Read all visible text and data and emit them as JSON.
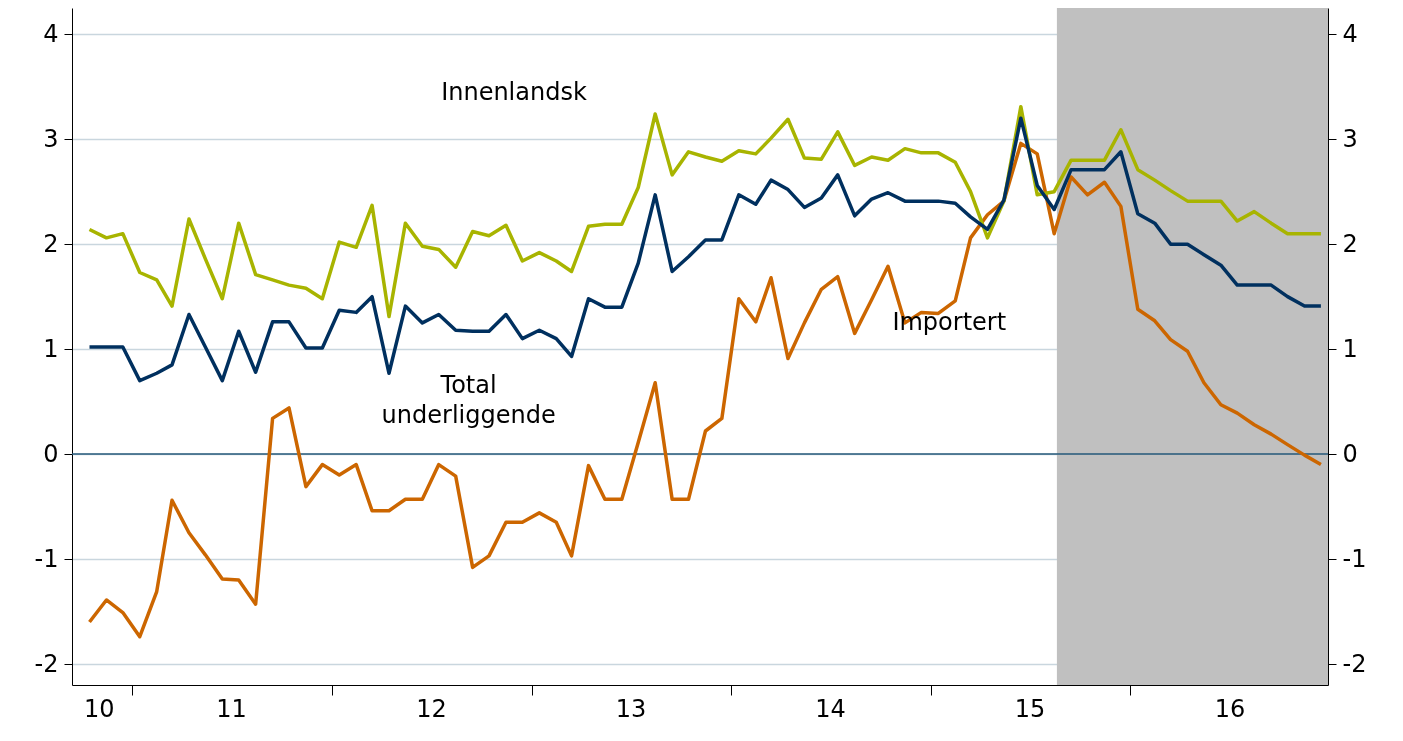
{
  "chart_data": {
    "type": "line",
    "x": [
      "2010-10-15",
      "2010-11-15",
      "2010-12-15",
      "2011-01-15",
      "2011-02-15",
      "2011-03-15",
      "2011-04-15",
      "2011-05-15",
      "2011-06-15",
      "2011-07-15",
      "2011-08-15",
      "2011-09-15",
      "2011-10-15",
      "2011-11-15",
      "2011-12-15",
      "2012-01-15",
      "2012-02-15",
      "2012-03-15",
      "2012-04-15",
      "2012-05-15",
      "2012-06-15",
      "2012-07-15",
      "2012-08-15",
      "2012-09-15",
      "2012-10-15",
      "2012-11-15",
      "2012-12-15",
      "2013-01-15",
      "2013-02-15",
      "2013-03-15",
      "2013-04-15",
      "2013-05-15",
      "2013-06-15",
      "2013-07-15",
      "2013-08-15",
      "2013-09-15",
      "2013-10-15",
      "2013-11-15",
      "2013-12-15",
      "2014-01-15",
      "2014-02-15",
      "2014-03-15",
      "2014-04-15",
      "2014-05-15",
      "2014-06-15",
      "2014-07-15",
      "2014-08-15",
      "2014-09-15",
      "2014-10-15",
      "2014-11-15",
      "2014-12-15",
      "2015-01-15",
      "2015-02-15",
      "2015-03-15",
      "2015-04-15",
      "2015-05-15",
      "2015-06-15",
      "2015-07-15",
      "2015-08-15",
      "2015-09-15",
      "2015-10-15",
      "2015-11-15",
      "2015-12-15",
      "2016-01-15",
      "2016-02-15",
      "2016-03-15",
      "2016-04-15",
      "2016-05-15",
      "2016-06-15",
      "2016-07-15",
      "2016-08-15",
      "2016-09-15",
      "2016-10-15",
      "2016-11-15",
      "2016-12-15"
    ],
    "series": [
      {
        "name": "Importert",
        "color": "#cc6600",
        "values": [
          -1.6,
          -1.39,
          -1.51,
          -1.74,
          -1.31,
          -0.44,
          -0.75,
          -0.96,
          -1.19,
          -1.2,
          -1.43,
          0.34,
          0.44,
          -0.31,
          -0.1,
          -0.2,
          -0.1,
          -0.54,
          -0.54,
          -0.43,
          -0.43,
          -0.1,
          -0.21,
          -1.08,
          -0.97,
          -0.65,
          -0.65,
          -0.56,
          -0.65,
          -0.97,
          -0.11,
          -0.43,
          -0.43,
          0.11,
          0.68,
          -0.43,
          -0.43,
          0.22,
          0.34,
          1.48,
          1.26,
          1.68,
          0.91,
          1.25,
          1.57,
          1.69,
          1.15,
          1.47,
          1.79,
          1.25,
          1.35,
          1.34,
          1.46,
          2.06,
          2.28,
          2.41,
          2.96,
          2.86,
          2.1,
          2.64,
          2.47,
          2.59,
          2.36,
          1.38,
          1.27,
          1.09,
          0.98,
          0.68,
          0.47,
          0.39,
          0.28,
          0.19,
          0.09,
          -0.01,
          -0.1
        ]
      },
      {
        "name": "Innenlandsk",
        "color": "#a8b400",
        "values": [
          2.14,
          2.06,
          2.1,
          1.73,
          1.66,
          1.41,
          2.24,
          1.86,
          1.48,
          2.2,
          1.71,
          1.66,
          1.61,
          1.58,
          1.48,
          2.02,
          1.97,
          2.37,
          1.31,
          2.2,
          1.98,
          1.95,
          1.78,
          2.12,
          2.08,
          2.18,
          1.84,
          1.92,
          1.84,
          1.74,
          2.17,
          2.19,
          2.19,
          2.54,
          3.24,
          2.66,
          2.88,
          2.83,
          2.79,
          2.89,
          2.86,
          3.01,
          3.19,
          2.82,
          2.81,
          3.07,
          2.75,
          2.83,
          2.8,
          2.91,
          2.87,
          2.87,
          2.78,
          2.5,
          2.06,
          2.41,
          3.31,
          2.47,
          2.5,
          2.8,
          2.8,
          2.8,
          3.09,
          2.71,
          2.61,
          2.51,
          2.41,
          2.41,
          2.41,
          2.22,
          2.31,
          2.2,
          2.1,
          2.1,
          2.1
        ]
      },
      {
        "name": "Total underliggende",
        "color": "#00305f",
        "values": [
          1.02,
          1.02,
          1.02,
          0.7,
          0.77,
          0.85,
          1.33,
          1.02,
          0.7,
          1.17,
          0.78,
          1.26,
          1.26,
          1.01,
          1.01,
          1.37,
          1.35,
          1.5,
          0.77,
          1.41,
          1.25,
          1.33,
          1.18,
          1.17,
          1.17,
          1.33,
          1.1,
          1.18,
          1.1,
          0.93,
          1.48,
          1.4,
          1.4,
          1.82,
          2.47,
          1.74,
          1.88,
          2.04,
          2.04,
          2.47,
          2.38,
          2.61,
          2.52,
          2.35,
          2.44,
          2.66,
          2.27,
          2.43,
          2.49,
          2.41,
          2.41,
          2.41,
          2.39,
          2.26,
          2.14,
          2.42,
          3.2,
          2.56,
          2.33,
          2.71,
          2.71,
          2.71,
          2.88,
          2.29,
          2.2,
          2.0,
          2.0,
          1.9,
          1.8,
          1.61,
          1.61,
          1.61,
          1.5,
          1.41,
          1.41
        ]
      }
    ],
    "xlim": [
      "2010-09-13",
      "2016-12-28"
    ],
    "xticks": [
      {
        "value": "2010-11-01",
        "label": "10"
      },
      {
        "value": "2011-01-01",
        "label": null
      },
      {
        "value": "2011-07-01",
        "label": "11"
      },
      {
        "value": "2012-01-01",
        "label": null
      },
      {
        "value": "2012-07-01",
        "label": "12"
      },
      {
        "value": "2013-01-01",
        "label": null
      },
      {
        "value": "2013-07-01",
        "label": "13"
      },
      {
        "value": "2014-01-01",
        "label": null
      },
      {
        "value": "2014-07-01",
        "label": "14"
      },
      {
        "value": "2015-01-01",
        "label": null
      },
      {
        "value": "2015-07-01",
        "label": "15"
      },
      {
        "value": "2016-01-01",
        "label": null
      },
      {
        "value": "2016-07-01",
        "label": "16"
      }
    ],
    "ylim": [
      -2.2,
      4.25
    ],
    "yticks": [
      -2,
      -1,
      0,
      1,
      2,
      3,
      4
    ],
    "y2lim": [
      -2.2,
      4.25
    ],
    "y2ticks": [
      -2,
      -1,
      0,
      1,
      2,
      3,
      4
    ],
    "grid": "y",
    "line_style": "solid",
    "ref_lines": [
      {
        "axis": "y",
        "value": 0,
        "color": "#24587a"
      }
    ],
    "bands": [
      {
        "axis": "x",
        "from": "2015-08-20",
        "to": "2016-12-28",
        "color": "#c0c0c0"
      }
    ]
  }
}
